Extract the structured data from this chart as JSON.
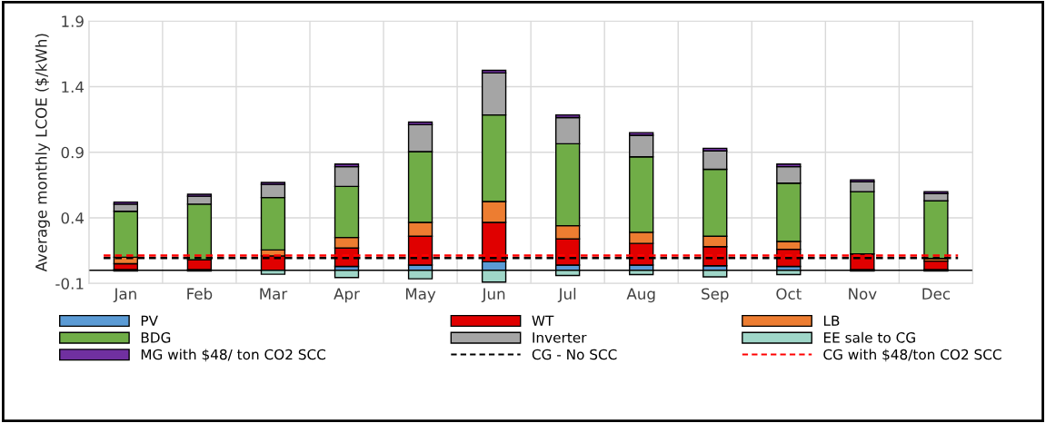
{
  "chart_data": {
    "type": "bar",
    "stacked": true,
    "ylabel": "Average monthly LCOE ($/kWh)",
    "categories": [
      "Jan",
      "Feb",
      "Mar",
      "Apr",
      "May",
      "Jun",
      "Jul",
      "Aug",
      "Sep",
      "Oct",
      "Nov",
      "Dec"
    ],
    "series": [
      {
        "name": "PV",
        "color": "#5b9bd5",
        "values": [
          0.005,
          0.005,
          null,
          0.03,
          0.04,
          0.065,
          0.04,
          0.04,
          0.035,
          0.03,
          0.005,
          0.005
        ]
      },
      {
        "name": "WT",
        "color": "#e00000",
        "values": [
          0.045,
          0.075,
          0.11,
          0.14,
          0.22,
          0.3,
          0.2,
          0.165,
          0.145,
          0.13,
          0.12,
          0.065
        ]
      },
      {
        "name": "LB",
        "color": "#ed7d31",
        "values": [
          0.05,
          null,
          0.045,
          0.08,
          0.105,
          0.16,
          0.1,
          0.085,
          0.08,
          0.06,
          null,
          0.02
        ]
      },
      {
        "name": "BDG",
        "color": "#70ad47",
        "values": [
          0.35,
          0.425,
          0.4,
          0.39,
          0.54,
          0.66,
          0.625,
          0.575,
          0.51,
          0.445,
          0.475,
          0.44
        ]
      },
      {
        "name": "Inverter",
        "color": "#a5a5a5",
        "values": [
          0.055,
          0.06,
          0.1,
          0.15,
          0.205,
          0.32,
          0.2,
          0.165,
          0.14,
          0.125,
          0.075,
          0.055
        ]
      },
      {
        "name": "EE sale to CG",
        "color": "#9fd6c8",
        "values": [
          -0.005,
          -0.005,
          -0.03,
          -0.055,
          -0.065,
          -0.09,
          -0.04,
          -0.033,
          -0.05,
          -0.033,
          -0.005,
          -0.005
        ]
      },
      {
        "name": "MG with $48/ ton CO2 SCC",
        "color": "#7030a0",
        "values": [
          0.015,
          0.015,
          0.015,
          0.02,
          0.02,
          0.02,
          0.02,
          0.02,
          0.02,
          0.02,
          0.015,
          0.015
        ]
      }
    ],
    "ref_lines": [
      {
        "axis": "y",
        "value": 0.093,
        "label": "CG - No SCC",
        "color": "#000000",
        "line_style": "dashed"
      },
      {
        "axis": "y",
        "value": 0.113,
        "label": "CG with $48/ton CO2 SCC",
        "color": "#ff0000",
        "line_style": "dashed"
      }
    ],
    "ylim": [
      -0.1,
      1.9
    ],
    "yticks": [
      -0.1,
      0.4,
      0.9,
      1.4,
      1.9
    ],
    "grid": true,
    "legend": "bottom"
  }
}
